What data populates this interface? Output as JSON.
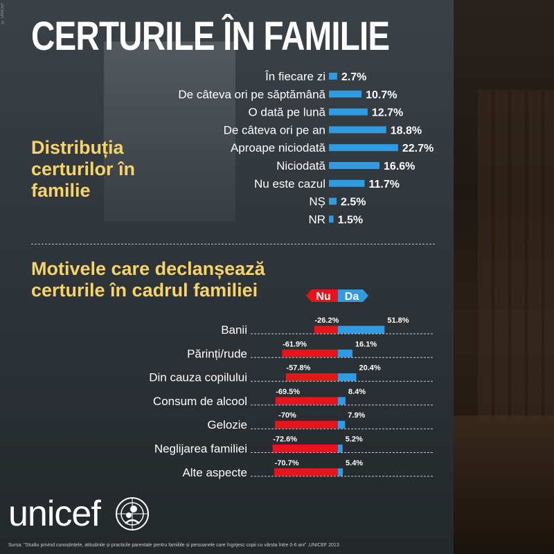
{
  "copyright": "© UNICEF",
  "title": "CERTURILE ÎN FAMILIE",
  "section1_title": "Distribuția\ncerturilor în\nfamilie",
  "section2_title": "Motivele care declanșează\ncerturile în cadrul familiei",
  "legend": {
    "no_label": "Nu",
    "yes_label": "Da",
    "no_color": "#e8141b",
    "yes_color": "#2f9be3"
  },
  "colors": {
    "bar": "#2f9be3",
    "no": "#e8141b",
    "yes": "#2f9be3",
    "title": "#f7d46a"
  },
  "chart_data": [
    {
      "type": "bar",
      "orientation": "horizontal",
      "categories": [
        "În fiecare zi",
        "De câteva ori pe săptămână",
        "O dată pe lună",
        "De câteva ori pe an",
        "Aproape niciodată",
        "Niciodată",
        "Nu este cazul",
        "NȘ",
        "NR"
      ],
      "values": [
        2.7,
        10.7,
        12.7,
        18.8,
        22.7,
        16.6,
        11.7,
        2.5,
        1.5
      ],
      "value_labels": [
        "2.7%",
        "10.7%",
        "12.7%",
        "18.8%",
        "22.7%",
        "16.6%",
        "11.7%",
        "2.5%",
        "1.5%"
      ]
    },
    {
      "type": "bar",
      "orientation": "horizontal",
      "diverging": true,
      "categories": [
        "Banii",
        "Părinți/rude",
        "Din cauza copilului",
        "Consum de alcool",
        "Gelozie",
        "Neglijarea familiei",
        "Alte aspecte"
      ],
      "series": [
        {
          "name": "Nu",
          "values": [
            -26.2,
            -61.9,
            -57.8,
            -69.5,
            -70,
            -72.6,
            -70.7
          ],
          "labels": [
            "-26.2%",
            "-61.9%",
            "-57.8%",
            "-69.5%",
            "-70%",
            "-72.6%",
            "-70.7%"
          ]
        },
        {
          "name": "Da",
          "values": [
            51.8,
            16.1,
            20.4,
            8.4,
            7.9,
            5.2,
            5.4
          ],
          "labels": [
            "51.8%",
            "16.1%",
            "20.4%",
            "8.4%",
            "7.9%",
            "5.2%",
            "5.4%"
          ]
        }
      ]
    }
  ],
  "logo_text": "unicef",
  "source": "Sursa: \"Studiu privind cunoștințele, atitudinile și practicile parentale pentru familiile și persoanele care îngrijesc copii cu vârsta între 0-6 ani\" ,UNICEF 2013"
}
